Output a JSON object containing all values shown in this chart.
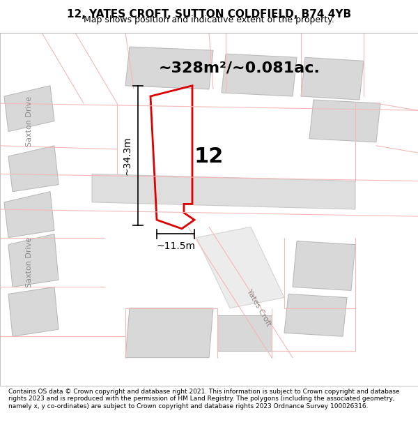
{
  "title": "12, YATES CROFT, SUTTON COLDFIELD, B74 4YB",
  "subtitle": "Map shows position and indicative extent of the property.",
  "area_label": "~328m²/~0.081ac.",
  "property_number": "12",
  "dim_vertical": "~34.3m",
  "dim_horizontal": "~11.5m",
  "footer": "Contains OS data © Crown copyright and database right 2021. This information is subject to Crown copyright and database rights 2023 and is reproduced with the permission of HM Land Registry. The polygons (including the associated geometry, namely x, y co-ordinates) are subject to Crown copyright and database rights 2023 Ordnance Survey 100026316.",
  "bg_color": "#f5f5f5",
  "map_bg": "#ffffff",
  "road_color_light": "#f5b8b8",
  "road_color_medium": "#e8a0a0",
  "block_color": "#d8d8d8",
  "block_stroke": "#cccccc",
  "highlight_block": "#c8c8c8",
  "red_plot": "#dd0000",
  "street_label_color": "#888888",
  "title_fontsize": 11,
  "subtitle_fontsize": 9,
  "area_fontsize": 16,
  "number_fontsize": 22,
  "dim_fontsize": 10,
  "footer_fontsize": 6.5
}
